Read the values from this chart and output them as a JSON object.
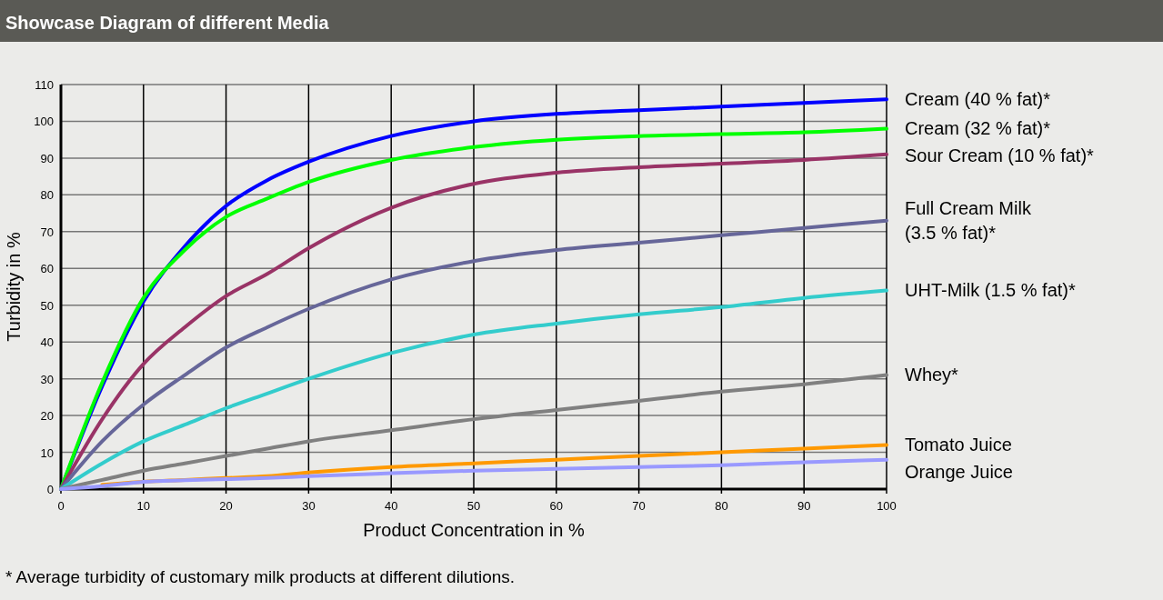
{
  "chart_data": {
    "type": "line",
    "title": "Showcase Diagram of different Media",
    "xlabel": "Product Concentration in %",
    "ylabel": "Turbidity in %",
    "x": [
      0,
      5,
      10,
      15,
      20,
      25,
      30,
      40,
      50,
      60,
      70,
      80,
      90,
      100
    ],
    "series": [
      {
        "name": "Cream (40 % fat)*",
        "color": "#0000ff",
        "values": [
          0,
          28,
          51,
          66,
          77,
          84,
          89,
          96,
          100,
          102,
          103,
          104,
          105,
          106
        ]
      },
      {
        "name": "Cream (32 % fat)*",
        "color": "#00ff00",
        "values": [
          0,
          29,
          52,
          65,
          74,
          79,
          83.5,
          89.5,
          93,
          95,
          96,
          96.5,
          97,
          98
        ]
      },
      {
        "name": "Sour Cream (10 % fat)*",
        "color": "#993366",
        "values": [
          0,
          19,
          34,
          44,
          52.5,
          58.5,
          65.5,
          76.5,
          83,
          86,
          87.5,
          88.5,
          89.5,
          91
        ]
      },
      {
        "name": "Full Cream Milk\n(3.5 % fat)*",
        "color": "#666699",
        "values": [
          0,
          13,
          23,
          31,
          38.5,
          44,
          49,
          57,
          62,
          65,
          67,
          69,
          71,
          73
        ]
      },
      {
        "name": "UHT-Milk (1.5 % fat)*",
        "color": "#33cccc",
        "values": [
          0,
          7,
          13,
          17.5,
          22,
          26,
          30,
          37,
          42,
          45,
          47.5,
          49.5,
          52,
          54
        ]
      },
      {
        "name": "Whey*",
        "color": "#808080",
        "values": [
          0,
          2.5,
          5,
          7,
          9,
          11,
          13,
          16,
          19,
          21.5,
          24,
          26.5,
          28.5,
          31
        ]
      },
      {
        "name": "Tomato Juice",
        "color": "#ff9900",
        "values": [
          null,
          1.2,
          2,
          2.5,
          3,
          3.5,
          4.5,
          6,
          7,
          8,
          9,
          10,
          11,
          12
        ]
      },
      {
        "name": "Orange Juice",
        "color": "#9999ff",
        "values": [
          0,
          0.8,
          2,
          2.4,
          2.7,
          3,
          3.5,
          4.3,
          5,
          5.5,
          6,
          6.5,
          7.3,
          8
        ]
      }
    ],
    "xlim": [
      0,
      100
    ],
    "xticks": [
      0,
      10,
      20,
      30,
      40,
      50,
      60,
      70,
      80,
      90,
      100
    ],
    "ylim": [
      0,
      110
    ],
    "yticks": [
      0,
      10,
      20,
      30,
      40,
      50,
      60,
      70,
      80,
      90,
      100,
      110
    ],
    "grid": true,
    "legend": "right",
    "marker": "none",
    "line_style": "solid",
    "annotations": [
      "* Average turbidity of customary milk products at different dilutions."
    ]
  }
}
